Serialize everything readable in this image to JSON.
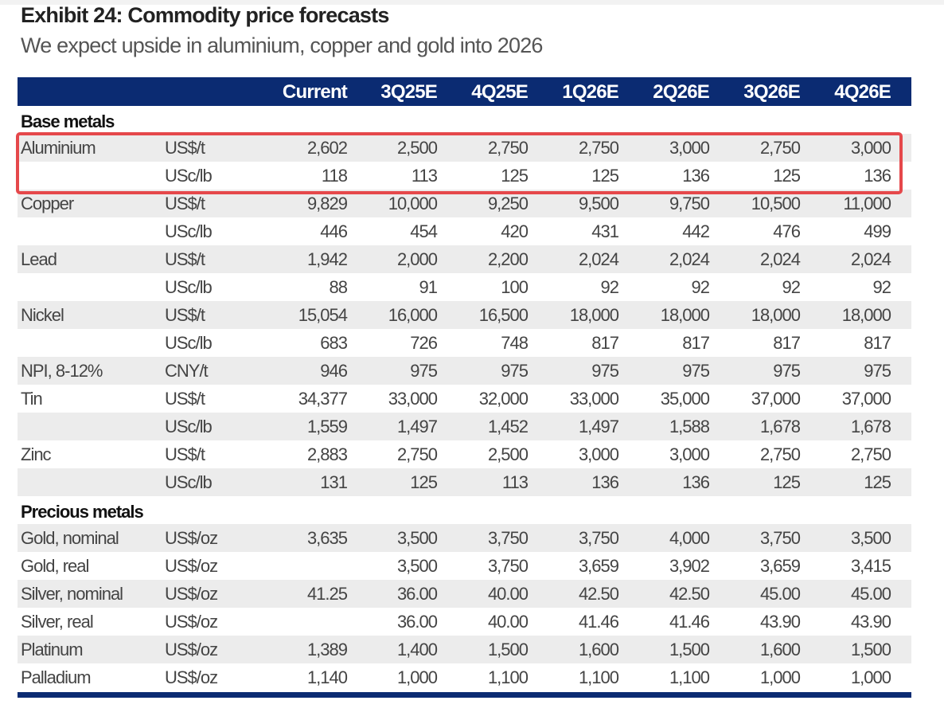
{
  "title": "Exhibit 24: Commodity price forecasts",
  "subtitle": "We expect upside in aluminium, copper and gold into 2026",
  "colors": {
    "header": "#0b2b72",
    "highlight_box": "#e5484b",
    "row_shade": "#ececec"
  },
  "columns": [
    "Current",
    "3Q25E",
    "4Q25E",
    "1Q26E",
    "2Q26E",
    "3Q26E",
    "4Q26E"
  ],
  "sections": [
    {
      "label": "Base metals",
      "rows": [
        {
          "name": "Aluminium",
          "unit": "US$/t",
          "values": [
            "2,602",
            "2,500",
            "2,750",
            "2,750",
            "3,000",
            "2,750",
            "3,000"
          ]
        },
        {
          "name": "",
          "unit": "USc/lb",
          "values": [
            "118",
            "113",
            "125",
            "125",
            "136",
            "125",
            "136"
          ]
        },
        {
          "name": "Copper",
          "unit": "US$/t",
          "values": [
            "9,829",
            "10,000",
            "9,250",
            "9,500",
            "9,750",
            "10,500",
            "11,000"
          ]
        },
        {
          "name": "",
          "unit": "USc/lb",
          "values": [
            "446",
            "454",
            "420",
            "431",
            "442",
            "476",
            "499"
          ]
        },
        {
          "name": "Lead",
          "unit": "US$/t",
          "values": [
            "1,942",
            "2,000",
            "2,200",
            "2,024",
            "2,024",
            "2,024",
            "2,024"
          ]
        },
        {
          "name": "",
          "unit": "USc/lb",
          "values": [
            "88",
            "91",
            "100",
            "92",
            "92",
            "92",
            "92"
          ]
        },
        {
          "name": "Nickel",
          "unit": "US$/t",
          "values": [
            "15,054",
            "16,000",
            "16,500",
            "18,000",
            "18,000",
            "18,000",
            "18,000"
          ]
        },
        {
          "name": "",
          "unit": "USc/lb",
          "values": [
            "683",
            "726",
            "748",
            "817",
            "817",
            "817",
            "817"
          ]
        },
        {
          "name": "NPI, 8-12%",
          "unit": "CNY/t",
          "values": [
            "946",
            "975",
            "975",
            "975",
            "975",
            "975",
            "975"
          ]
        },
        {
          "name": "Tin",
          "unit": "US$/t",
          "values": [
            "34,377",
            "33,000",
            "32,000",
            "33,000",
            "35,000",
            "37,000",
            "37,000"
          ]
        },
        {
          "name": "",
          "unit": "USc/lb",
          "values": [
            "1,559",
            "1,497",
            "1,452",
            "1,497",
            "1,588",
            "1,678",
            "1,678"
          ]
        },
        {
          "name": "Zinc",
          "unit": "US$/t",
          "values": [
            "2,883",
            "2,750",
            "2,500",
            "3,000",
            "3,000",
            "2,750",
            "2,750"
          ]
        },
        {
          "name": "",
          "unit": "USc/lb",
          "values": [
            "131",
            "125",
            "113",
            "136",
            "136",
            "125",
            "125"
          ]
        }
      ]
    },
    {
      "label": "Precious metals",
      "rows": [
        {
          "name": "Gold, nominal",
          "unit": "US$/oz",
          "values": [
            "3,635",
            "3,500",
            "3,750",
            "3,750",
            "4,000",
            "3,750",
            "3,500"
          ]
        },
        {
          "name": "Gold, real",
          "unit": "US$/oz",
          "values": [
            "",
            "3,500",
            "3,750",
            "3,659",
            "3,902",
            "3,659",
            "3,415"
          ]
        },
        {
          "name": "Silver, nominal",
          "unit": "US$/oz",
          "values": [
            "41.25",
            "36.00",
            "40.00",
            "42.50",
            "42.50",
            "45.00",
            "45.00"
          ]
        },
        {
          "name": "Silver, real",
          "unit": "US$/oz",
          "values": [
            "",
            "36.00",
            "40.00",
            "41.46",
            "41.46",
            "43.90",
            "43.90"
          ]
        },
        {
          "name": "Platinum",
          "unit": "US$/oz",
          "values": [
            "1,389",
            "1,400",
            "1,500",
            "1,600",
            "1,500",
            "1,600",
            "1,500"
          ]
        },
        {
          "name": "Palladium",
          "unit": "US$/oz",
          "values": [
            "1,140",
            "1,000",
            "1,100",
            "1,100",
            "1,100",
            "1,000",
            "1,000"
          ]
        }
      ]
    }
  ]
}
